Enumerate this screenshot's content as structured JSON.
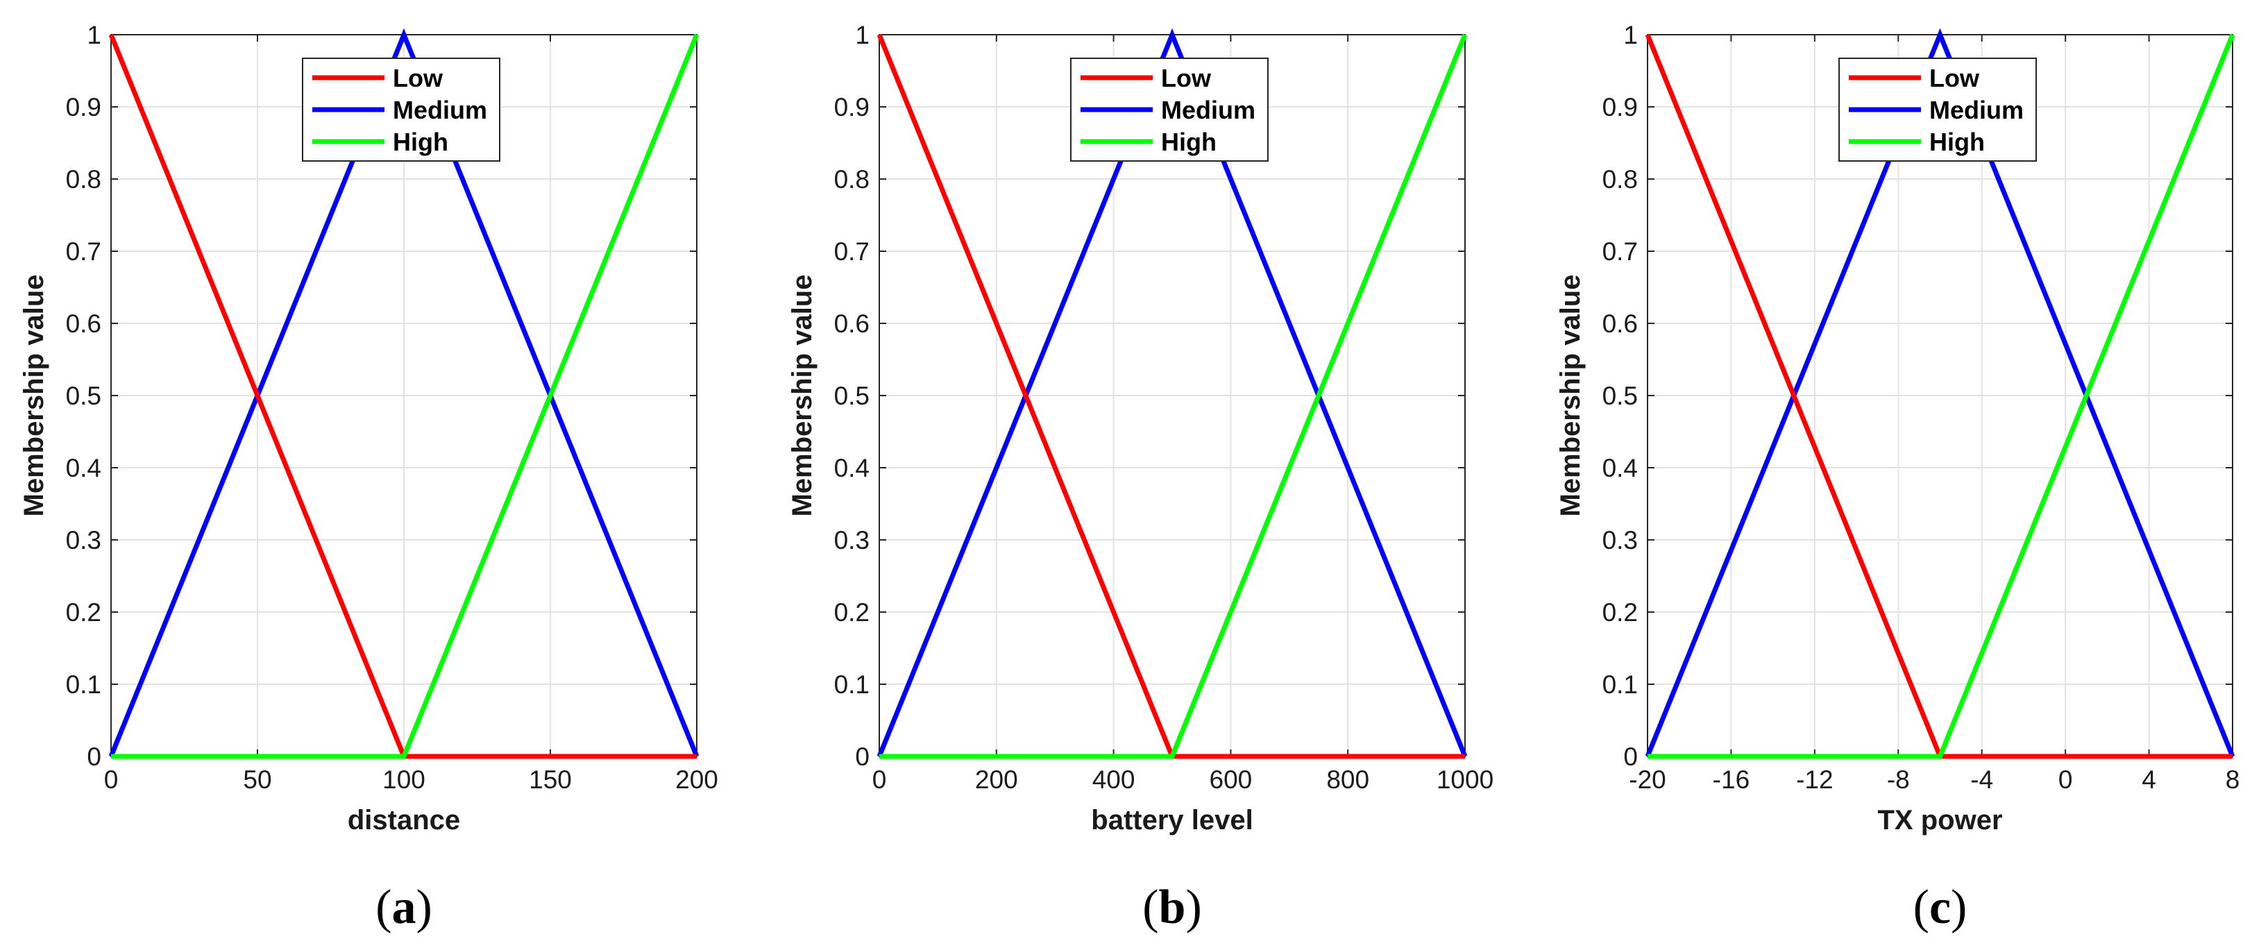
{
  "chart_data": [
    {
      "type": "line",
      "caption": "a",
      "xlabel": "distance",
      "ylabel": "Membership value",
      "xlim": [
        0,
        200
      ],
      "ylim": [
        0,
        1
      ],
      "xticks": [
        0,
        50,
        100,
        150,
        200
      ],
      "xtick_labels": [
        "0",
        "50",
        "100",
        "150",
        "200"
      ],
      "yticks": [
        0,
        0.1,
        0.2,
        0.3,
        0.4,
        0.5,
        0.6,
        0.7,
        0.8,
        0.9,
        1
      ],
      "ytick_labels": [
        "0",
        "0.1",
        "0.2",
        "0.3",
        "0.4",
        "0.5",
        "0.6",
        "0.7",
        "0.8",
        "0.9",
        "1"
      ],
      "grid": true,
      "legend_position": "top-center",
      "series": [
        {
          "name": "Low",
          "color": "#ff0000",
          "x": [
            0,
            100,
            200
          ],
          "y": [
            1,
            0,
            0
          ]
        },
        {
          "name": "Medium",
          "color": "#0000ff",
          "x": [
            0,
            100,
            200
          ],
          "y": [
            0,
            1,
            0
          ]
        },
        {
          "name": "High",
          "color": "#00ff00",
          "x": [
            0,
            100,
            200
          ],
          "y": [
            0,
            0,
            1
          ]
        }
      ]
    },
    {
      "type": "line",
      "caption": "b",
      "xlabel": "battery level",
      "ylabel": "Membership value",
      "xlim": [
        0,
        1000
      ],
      "ylim": [
        0,
        1
      ],
      "xticks": [
        0,
        200,
        400,
        600,
        800,
        1000
      ],
      "xtick_labels": [
        "0",
        "200",
        "400",
        "600",
        "800",
        "1000"
      ],
      "yticks": [
        0,
        0.1,
        0.2,
        0.3,
        0.4,
        0.5,
        0.6,
        0.7,
        0.8,
        0.9,
        1
      ],
      "ytick_labels": [
        "0",
        "0.1",
        "0.2",
        "0.3",
        "0.4",
        "0.5",
        "0.6",
        "0.7",
        "0.8",
        "0.9",
        "1"
      ],
      "grid": true,
      "legend_position": "top-center",
      "series": [
        {
          "name": "Low",
          "color": "#ff0000",
          "x": [
            0,
            500,
            1000
          ],
          "y": [
            1,
            0,
            0
          ]
        },
        {
          "name": "Medium",
          "color": "#0000ff",
          "x": [
            0,
            500,
            1000
          ],
          "y": [
            0,
            1,
            0
          ]
        },
        {
          "name": "High",
          "color": "#00ff00",
          "x": [
            0,
            500,
            1000
          ],
          "y": [
            0,
            0,
            1
          ]
        }
      ]
    },
    {
      "type": "line",
      "caption": "c",
      "xlabel": "TX power",
      "ylabel": "Membership value",
      "xlim": [
        -20,
        8
      ],
      "ylim": [
        0,
        1
      ],
      "xticks": [
        -20,
        -16,
        -12,
        -8,
        -4,
        0,
        4,
        8
      ],
      "xtick_labels": [
        "-20",
        "-16",
        "-12",
        "-8",
        "-4",
        "0",
        "4",
        "8"
      ],
      "yticks": [
        0,
        0.1,
        0.2,
        0.3,
        0.4,
        0.5,
        0.6,
        0.7,
        0.8,
        0.9,
        1
      ],
      "ytick_labels": [
        "0",
        "0.1",
        "0.2",
        "0.3",
        "0.4",
        "0.5",
        "0.6",
        "0.7",
        "0.8",
        "0.9",
        "1"
      ],
      "grid": true,
      "legend_position": "top-center",
      "series": [
        {
          "name": "Low",
          "color": "#ff0000",
          "x": [
            -20,
            -6,
            8
          ],
          "y": [
            1,
            0,
            0
          ]
        },
        {
          "name": "Medium",
          "color": "#0000ff",
          "x": [
            -20,
            -6,
            8
          ],
          "y": [
            0,
            1,
            0
          ]
        },
        {
          "name": "High",
          "color": "#00ff00",
          "x": [
            -20,
            -6,
            8
          ],
          "y": [
            0,
            0,
            1
          ]
        }
      ]
    }
  ]
}
